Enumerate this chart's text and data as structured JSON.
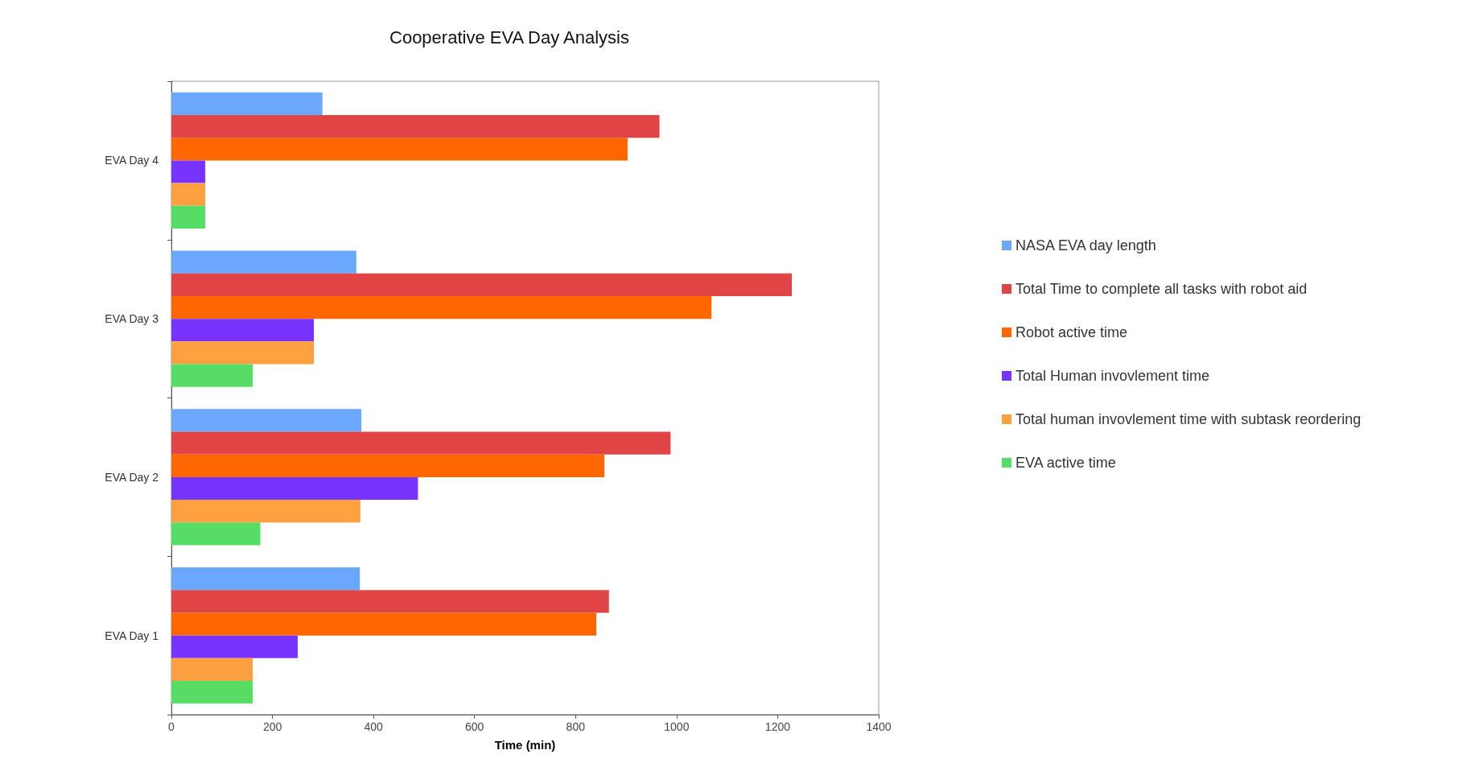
{
  "chart_data": {
    "type": "bar",
    "orientation": "horizontal",
    "title": "Cooperative EVA Day Analysis",
    "xlabel": "Time (min)",
    "categories": [
      "EVA Day 4",
      "EVA Day 3",
      "EVA Day 2",
      "EVA Day 1"
    ],
    "series": [
      {
        "name": "NASA EVA day length",
        "color": "#6aa8ff",
        "values": [
          299,
          366,
          376,
          373
        ]
      },
      {
        "name": "Total Time to complete all tasks with robot aid",
        "color": "#e04444",
        "values": [
          966,
          1228,
          988,
          866
        ]
      },
      {
        "name": "Robot active time",
        "color": "#ff6600",
        "values": [
          903,
          1069,
          857,
          841
        ]
      },
      {
        "name": "Total Human invovlement time",
        "color": "#7733ff",
        "values": [
          67,
          282,
          488,
          250
        ]
      },
      {
        "name": "Total human invovlement time with subtask reordering",
        "color": "#ffa040",
        "values": [
          67,
          282,
          374,
          161
        ]
      },
      {
        "name": "EVA active time",
        "color": "#55dd66",
        "values": [
          67,
          161,
          176,
          161
        ]
      }
    ],
    "xlim": [
      0,
      1400
    ],
    "xticks": [
      0,
      200,
      400,
      600,
      800,
      1000,
      1200,
      1400
    ],
    "grid": false,
    "legend": "right"
  }
}
